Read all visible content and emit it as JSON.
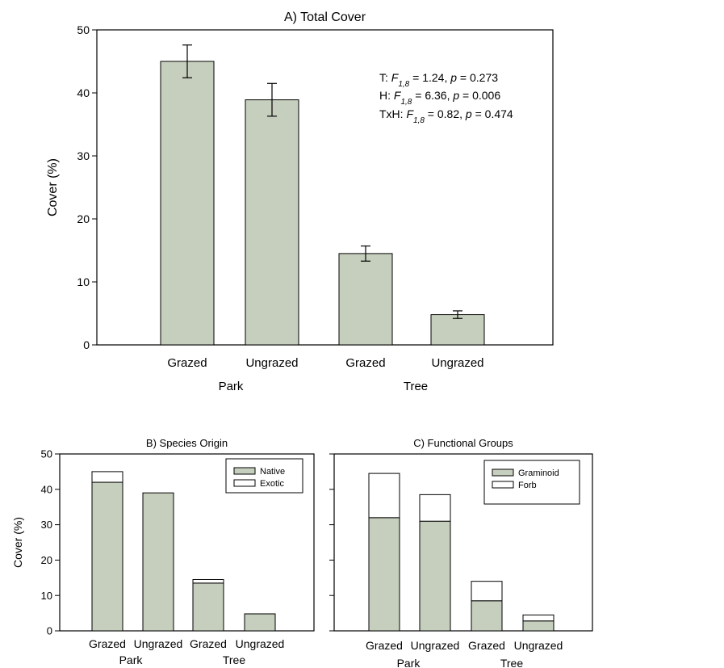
{
  "colors": {
    "bar": "#c6cfbe",
    "exotic": "#ffffff",
    "stroke": "#000000"
  },
  "chart_data": [
    {
      "id": "A",
      "type": "bar",
      "title": "A) Total Cover",
      "ylabel": "Cover (%)",
      "ylim": [
        0,
        50
      ],
      "yticks": [
        0,
        10,
        20,
        30,
        40,
        50
      ],
      "categories": [
        "Grazed",
        "Ungrazed",
        "Grazed",
        "Ungrazed"
      ],
      "groups": [
        "Park",
        "Tree"
      ],
      "series": [
        {
          "values": [
            45.0,
            38.9,
            14.5,
            4.8
          ],
          "errors": [
            2.6,
            2.6,
            1.2,
            0.6
          ]
        }
      ],
      "stats": [
        {
          "prefix": "T: ",
          "F": "F",
          "sub": "1,8",
          "eq": " = 1.24, ",
          "p": "p",
          "pval": " = 0.273"
        },
        {
          "prefix": "H: ",
          "F": "F",
          "sub": "1,8",
          "eq": " = 6.36, ",
          "p": "p",
          "pval": " = 0.006"
        },
        {
          "prefix": "TxH: ",
          "F": "F",
          "sub": "1,8",
          "eq": " = 0.82, ",
          "p": "p",
          "pval": " = 0.474"
        }
      ]
    },
    {
      "id": "B",
      "type": "bar",
      "stacked": true,
      "title": "B) Species Origin",
      "ylabel": "Cover (%)",
      "ylim": [
        0,
        50
      ],
      "yticks": [
        0,
        10,
        20,
        30,
        40,
        50
      ],
      "categories": [
        "Grazed",
        "Ungrazed",
        "Grazed",
        "Ungrazed"
      ],
      "groups": [
        "Park",
        "Tree"
      ],
      "legend": "top-right",
      "series": [
        {
          "name": "Native",
          "values": [
            42.0,
            39.0,
            13.5,
            4.8
          ]
        },
        {
          "name": "Exotic",
          "values": [
            3.0,
            0.0,
            1.0,
            0.0
          ]
        }
      ]
    },
    {
      "id": "C",
      "type": "bar",
      "stacked": true,
      "title": "C) Functional Groups",
      "ylim": [
        0,
        50
      ],
      "yticks": [
        0,
        10,
        20,
        30,
        40,
        50
      ],
      "categories": [
        "Grazed",
        "Ungrazed",
        "Grazed",
        "Ungrazed"
      ],
      "groups": [
        "Park",
        "Tree"
      ],
      "legend": "top-right",
      "series": [
        {
          "name": "Graminoid",
          "values": [
            32.0,
            31.0,
            8.5,
            2.8
          ]
        },
        {
          "name": "Forb",
          "values": [
            12.5,
            7.5,
            5.5,
            1.7
          ]
        }
      ]
    }
  ]
}
